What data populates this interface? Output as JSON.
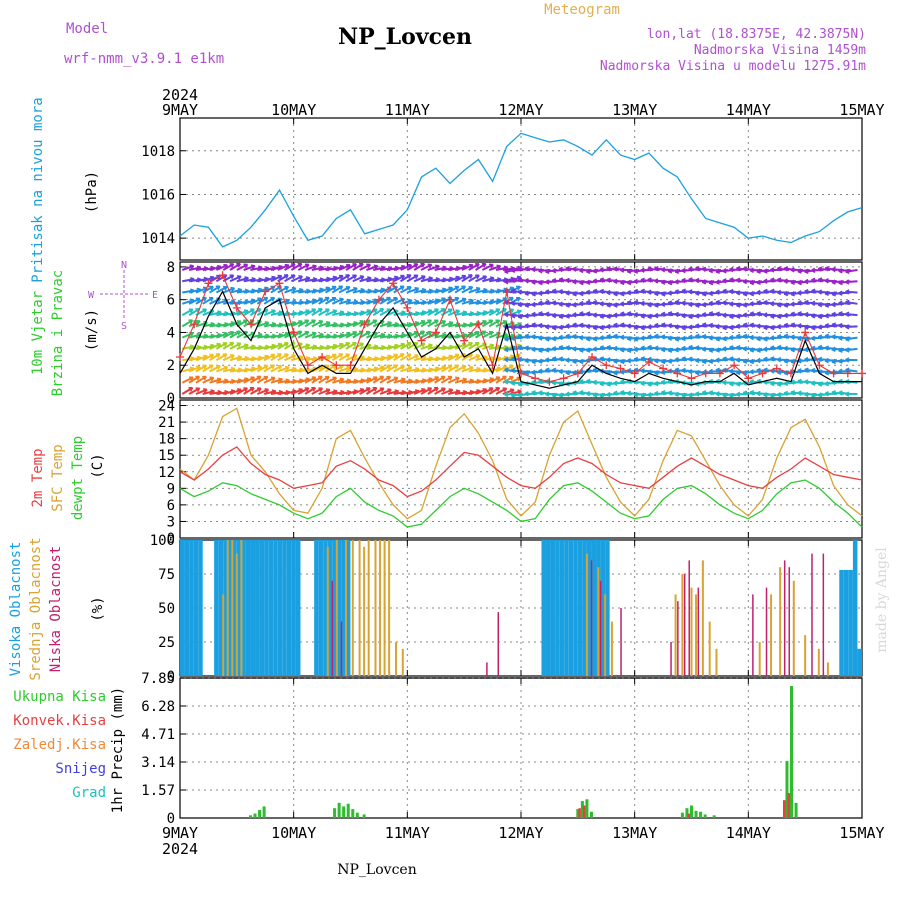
{
  "header": {
    "model_label": "Model",
    "model_name": "wrf-nmm_v3.9.1 e1km",
    "station": "NP_Lovcen",
    "meteogram": "Meteogram",
    "coords": "lon,lat (18.8375E, 42.3875N)",
    "elevation": "Nadmorska Visina 1459m",
    "model_elevation": "Nadmorska Visina u modelu 1275.91m",
    "footer_station": "NP_Lovcen",
    "credit": "made by Angel"
  },
  "time_axis": {
    "year_top": "2024",
    "year_bottom": "2024",
    "labels": [
      "9MAY",
      "10MAY",
      "11MAY",
      "12MAY",
      "13MAY",
      "14MAY",
      "15MAY"
    ]
  },
  "colors": {
    "pressure": "#1aa0e0",
    "wind_speed": "#000000",
    "wind_gust": "#e8383a",
    "temp2m": "#e84040",
    "sfc_temp": "#d9a233",
    "dewpt": "#2ecc2e",
    "cloud_high": "#1aa0e0",
    "cloud_mid": "#d9a233",
    "cloud_low": "#c0206e",
    "precip_total": "#2ebb2e",
    "precip_conv": "#e84040",
    "legend_purple": "#b050d0"
  },
  "chart_data": [
    {
      "type": "line",
      "panel": "pressure",
      "ylabel": "Pritisak na nivou mora",
      "units": "(hPa)",
      "yticks": [
        "1014",
        "1016",
        "1018"
      ],
      "ylim": [
        1013,
        1019.5
      ],
      "x_days": [
        0,
        0.125,
        0.25,
        0.375,
        0.5,
        0.625,
        0.75,
        0.875,
        1,
        1.125,
        1.25,
        1.375,
        1.5,
        1.625,
        1.75,
        1.875,
        2,
        2.125,
        2.25,
        2.375,
        2.5,
        2.625,
        2.75,
        2.875,
        3,
        3.125,
        3.25,
        3.375,
        3.5,
        3.625,
        3.75,
        3.875,
        4,
        4.125,
        4.25,
        4.375,
        4.5,
        4.625,
        4.75,
        4.875,
        5,
        5.125,
        5.25,
        5.375,
        5.5,
        5.625,
        5.75,
        5.875,
        6
      ],
      "series": [
        {
          "values": [
            1014.1,
            1014.6,
            1014.5,
            1013.6,
            1013.9,
            1014.5,
            1015.3,
            1016.2,
            1015.0,
            1013.9,
            1014.1,
            1014.9,
            1015.3,
            1014.2,
            1014.4,
            1014.6,
            1015.3,
            1016.8,
            1017.2,
            1016.5,
            1017.1,
            1017.6,
            1016.6,
            1018.2,
            1018.8,
            1018.6,
            1018.4,
            1018.5,
            1018.2,
            1017.8,
            1018.5,
            1017.8,
            1017.6,
            1017.9,
            1017.2,
            1016.8,
            1015.8,
            1014.9,
            1014.7,
            1014.5,
            1014.0,
            1014.1,
            1013.9,
            1013.8,
            1014.1,
            1014.3,
            1014.8,
            1015.2,
            1015.4
          ]
        }
      ]
    },
    {
      "type": "line",
      "panel": "wind",
      "ylabel": "10m Vjetar Brzina i Pravac",
      "units": "(m/s)",
      "compass": {
        "n": "N",
        "s": "S",
        "e": "E",
        "w": "W"
      },
      "yticks": [
        "0",
        "2",
        "4",
        "6",
        "8"
      ],
      "ylim": [
        0,
        8.3
      ],
      "x_days": [
        0,
        0.125,
        0.25,
        0.375,
        0.5,
        0.625,
        0.75,
        0.875,
        1,
        1.125,
        1.25,
        1.375,
        1.5,
        1.625,
        1.75,
        1.875,
        2,
        2.125,
        2.25,
        2.375,
        2.5,
        2.625,
        2.75,
        2.875,
        3,
        3.125,
        3.25,
        3.375,
        3.5,
        3.625,
        3.75,
        3.875,
        4,
        4.125,
        4.25,
        4.375,
        4.5,
        4.625,
        4.75,
        4.875,
        5,
        5.125,
        5.25,
        5.375,
        5.5,
        5.625,
        5.75,
        5.875,
        6
      ],
      "series": [
        {
          "name": "speed",
          "values": [
            1.5,
            3.0,
            5.0,
            6.5,
            4.5,
            3.5,
            5.5,
            6.0,
            3.0,
            1.5,
            2.0,
            1.5,
            1.5,
            3.0,
            4.5,
            5.5,
            4.0,
            2.5,
            3.0,
            4.0,
            2.5,
            3.0,
            1.5,
            4.5,
            1.0,
            0.8,
            0.6,
            0.8,
            1.0,
            2.0,
            1.5,
            1.2,
            1.0,
            1.5,
            1.2,
            1.0,
            0.8,
            1.0,
            1.0,
            1.5,
            0.8,
            1.0,
            1.2,
            1.0,
            3.5,
            1.5,
            1.0,
            1.0,
            1.0
          ]
        },
        {
          "name": "gust",
          "values": [
            2.5,
            4.5,
            7.0,
            7.5,
            5.5,
            4.5,
            6.5,
            7.0,
            4.0,
            2.0,
            2.5,
            2.0,
            2.0,
            4.5,
            6.0,
            7.0,
            5.5,
            3.5,
            4.0,
            6.0,
            3.5,
            4.5,
            2.0,
            6.5,
            1.5,
            1.2,
            1.0,
            1.2,
            1.5,
            2.5,
            2.0,
            1.8,
            1.5,
            2.2,
            1.8,
            1.5,
            1.2,
            1.5,
            1.5,
            2.0,
            1.2,
            1.5,
            1.8,
            1.5,
            4.0,
            2.0,
            1.5,
            1.5,
            1.5
          ]
        }
      ]
    },
    {
      "type": "line",
      "panel": "temperature",
      "ylabels": [
        "2m Temp",
        "SFC Temp",
        "dewpt Temp"
      ],
      "units": "(C)",
      "yticks": [
        "0",
        "3",
        "6",
        "9",
        "12",
        "15",
        "18",
        "21",
        "24"
      ],
      "ylim": [
        0,
        25
      ],
      "x_days": [
        0,
        0.125,
        0.25,
        0.375,
        0.5,
        0.625,
        0.75,
        0.875,
        1,
        1.125,
        1.25,
        1.375,
        1.5,
        1.625,
        1.75,
        1.875,
        2,
        2.125,
        2.25,
        2.375,
        2.5,
        2.625,
        2.75,
        2.875,
        3,
        3.125,
        3.25,
        3.375,
        3.5,
        3.625,
        3.75,
        3.875,
        4,
        4.125,
        4.25,
        4.375,
        4.5,
        4.625,
        4.75,
        4.875,
        5,
        5.125,
        5.25,
        5.375,
        5.5,
        5.625,
        5.75,
        5.875,
        6
      ],
      "series": [
        {
          "name": "2m Temp",
          "values": [
            12.0,
            10.5,
            12.5,
            15.0,
            16.5,
            13.5,
            11.5,
            10.5,
            9.0,
            9.5,
            10.0,
            13.0,
            14.0,
            12.5,
            10.5,
            9.5,
            7.5,
            8.5,
            10.5,
            13.0,
            15.5,
            15.0,
            13.0,
            11.0,
            9.5,
            9.0,
            11.0,
            13.5,
            14.5,
            13.5,
            11.5,
            10.0,
            9.5,
            9.0,
            11.0,
            13.0,
            14.5,
            13.0,
            11.5,
            10.5,
            9.5,
            9.0,
            11.0,
            12.5,
            14.5,
            13.0,
            11.5,
            11.0,
            10.5
          ]
        },
        {
          "name": "SFC Temp",
          "values": [
            12.5,
            10.5,
            15.0,
            22.0,
            23.5,
            15.0,
            12.0,
            8.0,
            5.0,
            4.5,
            9.0,
            18.0,
            19.5,
            14.5,
            10.0,
            6.0,
            3.5,
            5.0,
            13.0,
            20.0,
            22.5,
            19.0,
            14.0,
            7.0,
            4.0,
            6.5,
            15.0,
            21.0,
            23.0,
            17.0,
            11.0,
            6.5,
            4.0,
            7.0,
            14.0,
            19.5,
            18.5,
            14.0,
            9.5,
            6.0,
            4.0,
            7.0,
            14.5,
            20.0,
            21.5,
            16.5,
            9.5,
            6.0,
            4.0
          ]
        },
        {
          "name": "dewpt Temp",
          "values": [
            9.0,
            7.5,
            8.5,
            10.0,
            9.5,
            8.0,
            7.0,
            6.0,
            4.5,
            3.5,
            4.5,
            7.5,
            9.0,
            6.5,
            5.0,
            4.0,
            2.0,
            2.5,
            5.0,
            7.5,
            9.0,
            8.0,
            6.5,
            5.0,
            3.0,
            3.5,
            7.0,
            9.5,
            10.0,
            8.5,
            6.5,
            4.5,
            3.5,
            4.0,
            7.0,
            9.0,
            9.5,
            8.0,
            6.0,
            4.5,
            3.5,
            5.0,
            8.0,
            10.0,
            10.5,
            9.0,
            6.5,
            4.5,
            2.0
          ]
        }
      ]
    },
    {
      "type": "bar",
      "panel": "clouds",
      "ylabels": [
        "Visoka Oblacnost",
        "Srednja Oblacnost",
        "Niska Oblacnost"
      ],
      "units": "(%)",
      "yticks": [
        "0",
        "25",
        "50",
        "75",
        "100"
      ],
      "ylim": [
        0,
        100
      ],
      "high_bars": [
        [
          0.02,
          100
        ],
        [
          0.06,
          100
        ],
        [
          0.1,
          100
        ],
        [
          0.14,
          100
        ],
        [
          0.18,
          100
        ],
        [
          0.32,
          100
        ],
        [
          0.36,
          100
        ],
        [
          0.4,
          100
        ],
        [
          0.44,
          100
        ],
        [
          0.48,
          100
        ],
        [
          0.52,
          100
        ],
        [
          0.56,
          100
        ],
        [
          0.6,
          100
        ],
        [
          0.64,
          100
        ],
        [
          0.68,
          100
        ],
        [
          0.72,
          100
        ],
        [
          0.76,
          100
        ],
        [
          0.8,
          100
        ],
        [
          0.84,
          100
        ],
        [
          0.88,
          100
        ],
        [
          0.92,
          100
        ],
        [
          0.96,
          100
        ],
        [
          1.0,
          100
        ],
        [
          1.04,
          100
        ],
        [
          1.2,
          100
        ],
        [
          1.24,
          100
        ],
        [
          1.28,
          100
        ],
        [
          1.32,
          100
        ],
        [
          1.36,
          100
        ],
        [
          1.4,
          100
        ],
        [
          1.44,
          100
        ],
        [
          1.48,
          100
        ],
        [
          3.2,
          100
        ],
        [
          3.24,
          100
        ],
        [
          3.28,
          100
        ],
        [
          3.32,
          100
        ],
        [
          3.36,
          100
        ],
        [
          3.4,
          100
        ],
        [
          3.44,
          100
        ],
        [
          3.48,
          100
        ],
        [
          3.52,
          100
        ],
        [
          3.56,
          100
        ],
        [
          3.6,
          100
        ],
        [
          3.64,
          100
        ],
        [
          3.68,
          100
        ],
        [
          3.72,
          100
        ],
        [
          3.76,
          100
        ],
        [
          5.82,
          78
        ],
        [
          5.86,
          78
        ],
        [
          5.9,
          78
        ],
        [
          5.94,
          100
        ],
        [
          5.98,
          20
        ]
      ],
      "mid_bars": [
        [
          0.38,
          60
        ],
        [
          0.42,
          100
        ],
        [
          0.46,
          100
        ],
        [
          0.5,
          90
        ],
        [
          0.54,
          100
        ],
        [
          1.3,
          95
        ],
        [
          1.38,
          100
        ],
        [
          1.46,
          100
        ],
        [
          1.52,
          100
        ],
        [
          1.58,
          100
        ],
        [
          1.62,
          95
        ],
        [
          1.66,
          100
        ],
        [
          1.72,
          100
        ],
        [
          1.76,
          100
        ],
        [
          1.8,
          100
        ],
        [
          1.84,
          100
        ],
        [
          1.9,
          25
        ],
        [
          1.96,
          20
        ],
        [
          3.58,
          90
        ],
        [
          3.68,
          80
        ],
        [
          3.74,
          60
        ],
        [
          3.8,
          40
        ],
        [
          4.36,
          60
        ],
        [
          4.42,
          75
        ],
        [
          4.5,
          65
        ],
        [
          4.54,
          60
        ],
        [
          4.6,
          85
        ],
        [
          4.66,
          40
        ],
        [
          4.72,
          20
        ],
        [
          5.1,
          25
        ],
        [
          5.2,
          60
        ],
        [
          5.28,
          80
        ],
        [
          5.4,
          70
        ],
        [
          5.5,
          30
        ],
        [
          5.62,
          20
        ],
        [
          5.7,
          10
        ]
      ],
      "low_bars": [
        [
          1.34,
          70
        ],
        [
          1.42,
          40
        ],
        [
          2.7,
          10
        ],
        [
          2.8,
          47
        ],
        [
          3.62,
          85
        ],
        [
          3.7,
          70
        ],
        [
          3.88,
          50
        ],
        [
          4.32,
          25
        ],
        [
          4.38,
          55
        ],
        [
          4.44,
          75
        ],
        [
          4.48,
          85
        ],
        [
          4.56,
          65
        ],
        [
          5.04,
          60
        ],
        [
          5.16,
          65
        ],
        [
          5.32,
          85
        ],
        [
          5.36,
          80
        ],
        [
          5.56,
          90
        ],
        [
          5.66,
          90
        ]
      ]
    },
    {
      "type": "bar",
      "panel": "precip",
      "legend": [
        "Ukupna Kisa",
        "Konvek.Kisa",
        "Zaledj.Kisa",
        "Snijeg",
        "Grad"
      ],
      "units": "1hr Precip (mm)",
      "yticks": [
        "0",
        "1.57",
        "3.14",
        "4.71",
        "6.28",
        "7.85"
      ],
      "ylim": [
        0,
        7.85
      ],
      "total_bars": [
        [
          0.62,
          0.15
        ],
        [
          0.66,
          0.25
        ],
        [
          0.7,
          0.45
        ],
        [
          0.74,
          0.65
        ],
        [
          1.36,
          0.55
        ],
        [
          1.4,
          0.85
        ],
        [
          1.44,
          0.65
        ],
        [
          1.48,
          0.8
        ],
        [
          1.52,
          0.5
        ],
        [
          1.56,
          0.3
        ],
        [
          1.62,
          0.2
        ],
        [
          3.5,
          0.5
        ],
        [
          3.54,
          0.95
        ],
        [
          3.58,
          1.05
        ],
        [
          3.62,
          0.35
        ],
        [
          4.42,
          0.3
        ],
        [
          4.46,
          0.55
        ],
        [
          4.5,
          0.7
        ],
        [
          4.54,
          0.4
        ],
        [
          4.58,
          0.35
        ],
        [
          4.62,
          0.2
        ],
        [
          4.7,
          0.15
        ],
        [
          5.34,
          3.2
        ],
        [
          5.38,
          7.4
        ],
        [
          5.42,
          0.85
        ]
      ],
      "conv_bars": [
        [
          3.54,
          0.55
        ],
        [
          3.58,
          0.7
        ],
        [
          4.5,
          0.25
        ],
        [
          5.34,
          1.0
        ],
        [
          5.38,
          1.4
        ]
      ]
    }
  ]
}
